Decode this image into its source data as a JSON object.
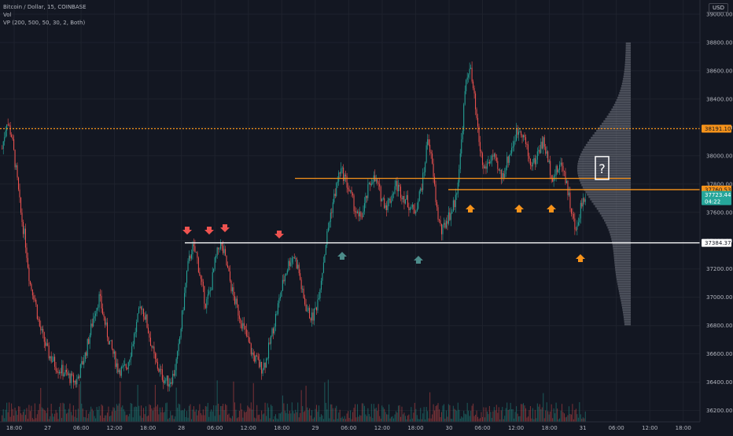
{
  "header": {
    "symbol_line": "Bitcoin / Dollar, 15, COINBASE",
    "vol_label": "Vol",
    "vp_label": "VP (200, 500, 50, 30, 2, Both)",
    "currency": "USD"
  },
  "annotations": {
    "question_mark": "?"
  },
  "colors": {
    "background": "#131722",
    "up": "#26a69a",
    "down": "#ef5350",
    "orange": "#f7931a",
    "white": "#ffffff",
    "teal_arrow": "#4c8c8a",
    "profile": "#787b86",
    "grid": "#1e222d",
    "axis_text": "#b2b5be"
  },
  "chart_data": {
    "type": "candlestick",
    "title": "Bitcoin / Dollar, 15, COINBASE",
    "y_ticks": [
      39000,
      38800,
      38600,
      38400,
      38200,
      38000,
      37800,
      37600,
      37400,
      37200,
      37000,
      36800,
      36600,
      36400,
      36200
    ],
    "y_tick_labels": [
      "39000.00",
      "38800.00",
      "38600.00",
      "38400.00",
      "38200.00",
      "38000.00",
      "37800.00",
      "37600.00",
      "37400.00",
      "37200.00",
      "37000.00",
      "36800.00",
      "36600.00",
      "36400.00",
      "36200.00"
    ],
    "ylim": [
      36120,
      39100
    ],
    "x_tick_labels": [
      "18:00",
      "27",
      "06:00",
      "12:00",
      "18:00",
      "28",
      "06:00",
      "12:00",
      "18:00",
      "29",
      "06:00",
      "12:00",
      "18:00",
      "30",
      "06:00",
      "12:00",
      "18:00",
      "31",
      "06:00",
      "12:00",
      "18:00"
    ],
    "price_levels": [
      {
        "value": 38191.1,
        "label": "38191.10",
        "style": "dotted",
        "color": "orange"
      },
      {
        "value": 37760.53,
        "label": "37760.53",
        "style": "solid",
        "color": "orange"
      },
      {
        "value": 37723.44,
        "label": "37723.44",
        "sublabel": "04:22",
        "style": "current",
        "color": "up"
      },
      {
        "value": 37384.37,
        "label": "37384.37",
        "style": "solid",
        "color": "white"
      }
    ],
    "horizontal_lines": [
      {
        "value": 37840,
        "color": "orange"
      },
      {
        "value": 37760.53,
        "color": "orange"
      },
      {
        "value": 37384.37,
        "color": "white"
      },
      {
        "value": 38191.1,
        "color": "orange",
        "dotted": true
      }
    ],
    "close_series": [
      38050,
      38250,
      38150,
      37900,
      37600,
      37400,
      37100,
      37000,
      36800,
      36700,
      36600,
      36550,
      36500,
      36480,
      36450,
      36420,
      36400,
      36500,
      36600,
      36750,
      36900,
      37000,
      36850,
      36700,
      36600,
      36500,
      36480,
      36520,
      36650,
      36800,
      36950,
      36850,
      36700,
      36550,
      36480,
      36420,
      36400,
      36450,
      36600,
      36900,
      37200,
      37350,
      37300,
      37100,
      36950,
      37050,
      37250,
      37380,
      37300,
      37150,
      37000,
      36900,
      36800,
      36700,
      36600,
      36550,
      36500,
      36550,
      36700,
      36850,
      37000,
      37150,
      37250,
      37300,
      37200,
      37000,
      36900,
      36850,
      36950,
      37150,
      37400,
      37600,
      37750,
      37900,
      37850,
      37750,
      37650,
      37550,
      37600,
      37750,
      37850,
      37800,
      37700,
      37650,
      37700,
      37800,
      37750,
      37700,
      37650,
      37600,
      37700,
      37850,
      38150,
      37900,
      37600,
      37450,
      37550,
      37600,
      37700,
      38000,
      38450,
      38650,
      38400,
      38100,
      37900,
      37950,
      38000,
      37900,
      37850,
      37950,
      38050,
      38150,
      38200,
      38100,
      37950,
      37950,
      38050,
      38100,
      37950,
      37850,
      37900,
      37950,
      37800,
      37600,
      37450,
      37650,
      37723
    ],
    "volume_profile": "horizontal histogram on right side, peak around 37800-38000"
  }
}
